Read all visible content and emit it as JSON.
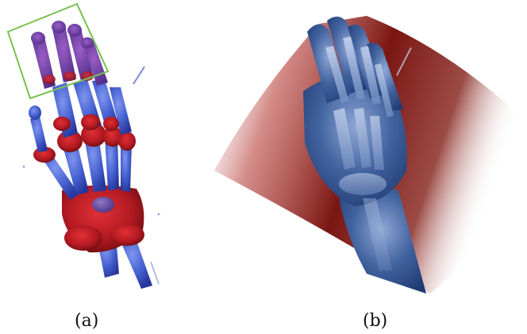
{
  "figure": {
    "panels": [
      {
        "id": "a",
        "caption": "(a)",
        "content": "bone-render-hand",
        "highlight": "green-selection-box"
      },
      {
        "id": "b",
        "caption": "(b)",
        "content": "soft-tissue-render-hand"
      }
    ]
  },
  "colors": {
    "bone_blue": "#3f58c8",
    "joint_red": "#b01820",
    "joint_purple": "#6b3a9a",
    "selection_green": "#78c050",
    "tissue_red": "#7a1612",
    "tissue_blue": "#2e4d8c",
    "background": "#ffffff"
  }
}
